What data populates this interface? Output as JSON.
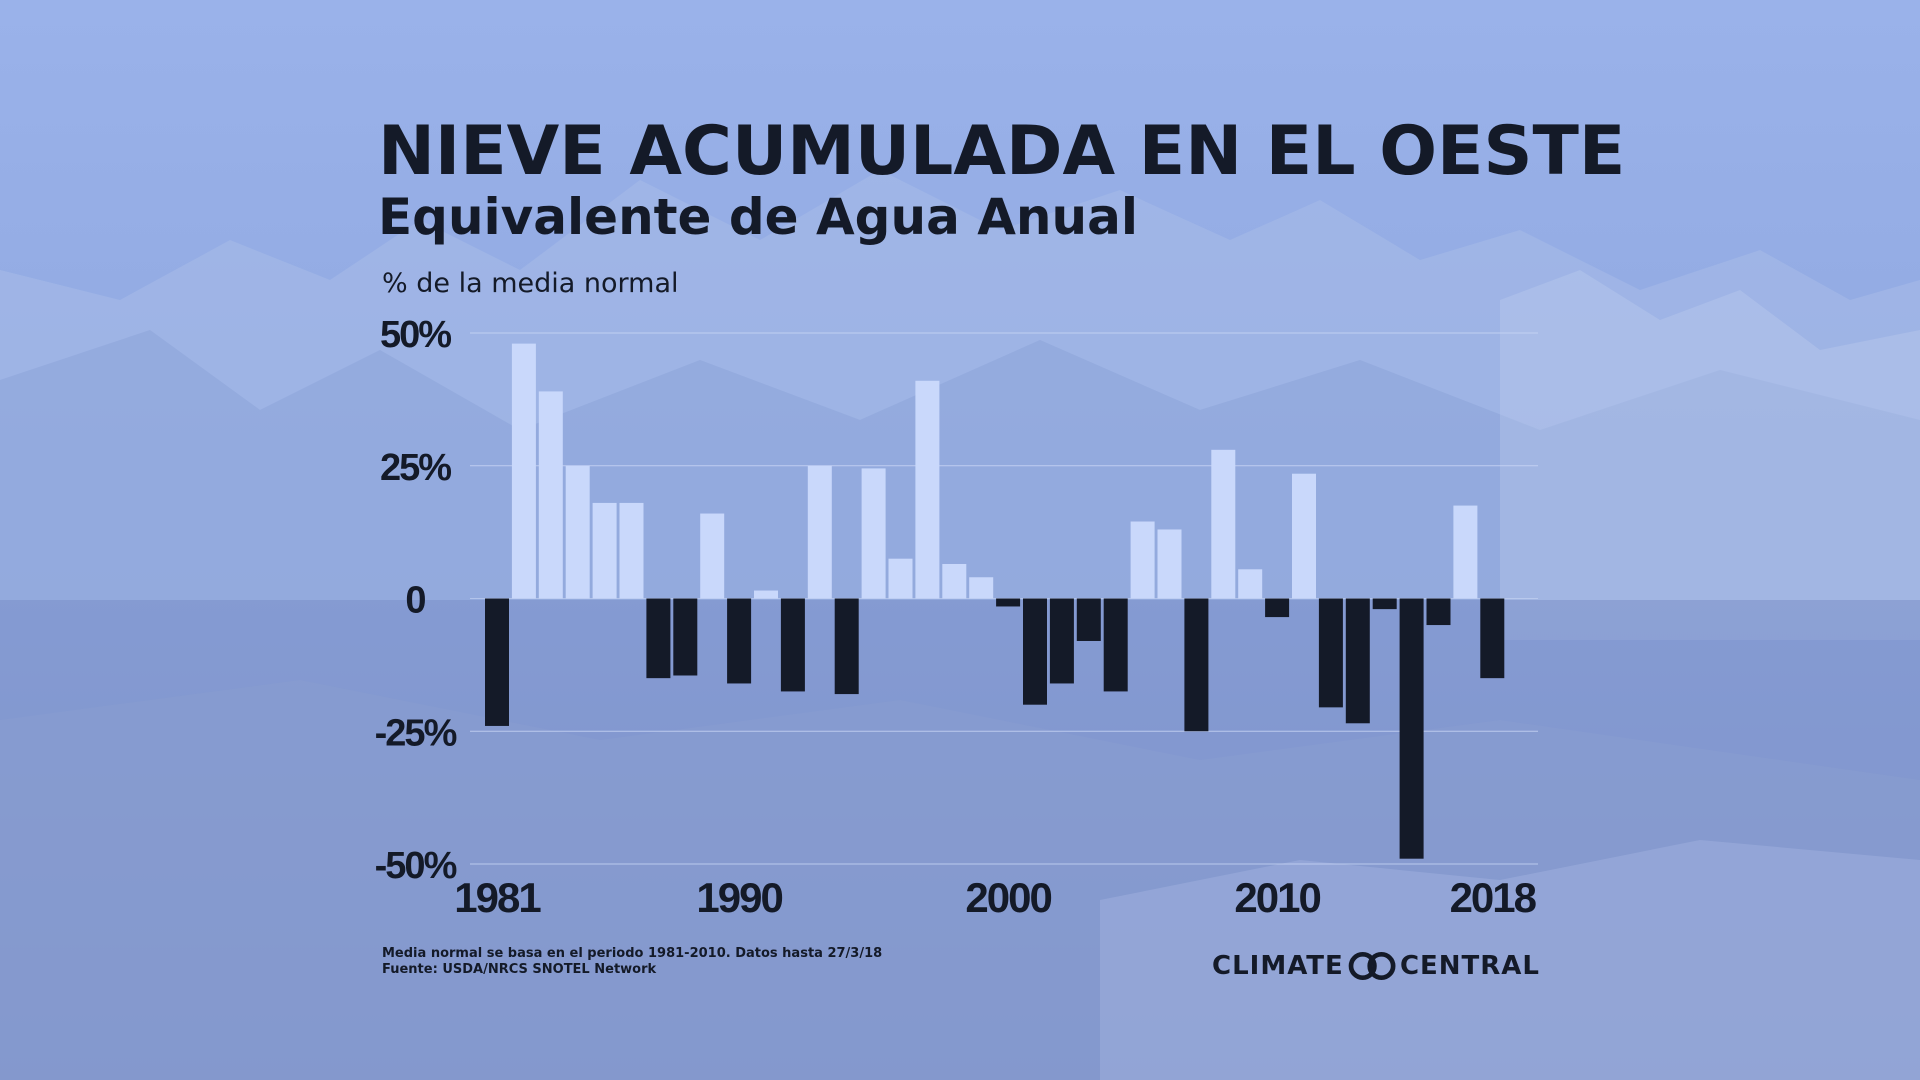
{
  "header": {
    "title": "NIEVE ACUMULADA EN EL OESTE",
    "subtitle": "Equivalente de Agua Anual"
  },
  "footer": {
    "note_line1": "Media normal se basa en el periodo 1981-2010. Datos hasta 27/3/18",
    "note_line2": "Fuente: USDA/NRCS SNOTEL Network",
    "brand_left": "CLIMATE",
    "brand_right": "CENTRAL",
    "brand_icon": "climate-central-logo"
  },
  "colors": {
    "positive_bar": "#c9d8fb",
    "negative_bar": "#141a28",
    "text": "#141a28",
    "background_top": "#93aee6",
    "background_bottom": "#7a8fc6"
  },
  "chart_data": {
    "type": "bar",
    "title": "NIEVE ACUMULADA EN EL OESTE",
    "subtitle": "Equivalente de Agua Anual",
    "ylabel": "% de la media normal",
    "xlabel": "",
    "ylim": [
      -50,
      50
    ],
    "yticks": [
      50,
      25,
      0,
      -25,
      -50
    ],
    "ytick_labels": [
      "50%",
      "25%",
      "0",
      "-25%",
      "-50%"
    ],
    "xtick_labels": [
      "1981",
      "1990",
      "2000",
      "2010",
      "2018"
    ],
    "xtick_years": [
      1981,
      1990,
      2000,
      2010,
      2018
    ],
    "grid": true,
    "categories": [
      1981,
      1982,
      1983,
      1984,
      1985,
      1986,
      1987,
      1988,
      1989,
      1990,
      1991,
      1992,
      1993,
      1994,
      1995,
      1996,
      1997,
      1998,
      1999,
      2000,
      2001,
      2002,
      2003,
      2004,
      2005,
      2006,
      2007,
      2008,
      2009,
      2010,
      2011,
      2012,
      2013,
      2014,
      2015,
      2016,
      2017,
      2018
    ],
    "values": [
      -24,
      48,
      39,
      25,
      18,
      18,
      -15,
      -14.5,
      16,
      -16,
      1.5,
      -17.5,
      25,
      -18,
      24.5,
      7.5,
      41,
      6.5,
      4,
      -1.5,
      -20,
      -16,
      -8,
      -17.5,
      14.5,
      13,
      -25,
      28,
      5.5,
      -3.5,
      23.5,
      -20.5,
      -23.5,
      -2,
      -49,
      -5,
      17.5,
      -15
    ]
  }
}
